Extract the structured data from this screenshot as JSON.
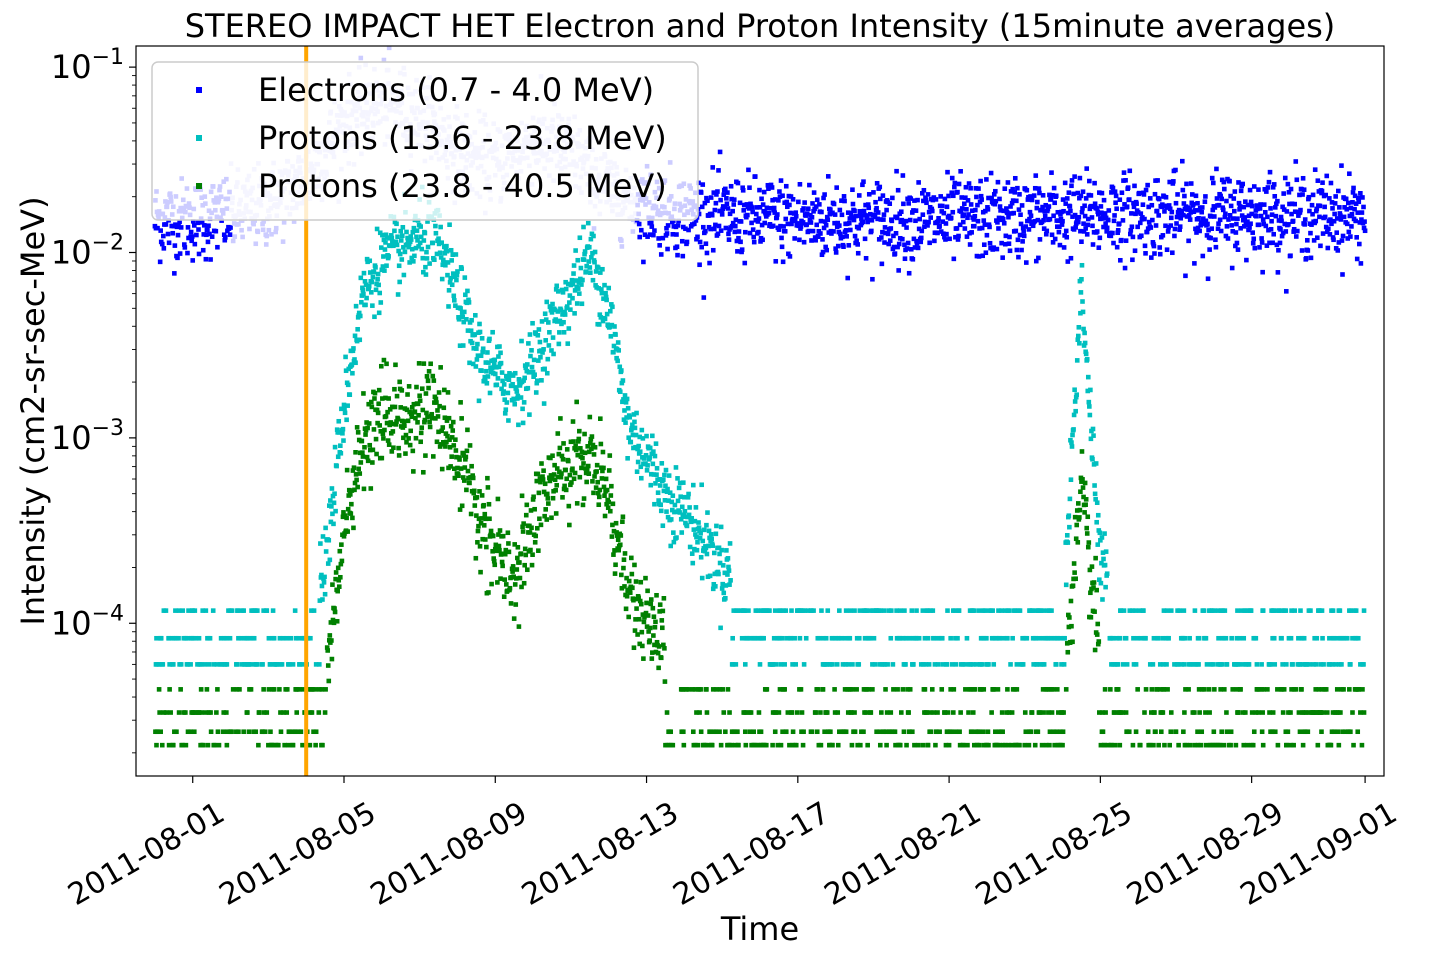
{
  "chart_data": {
    "type": "scatter",
    "title": "STEREO IMPACT HET Electron and Proton Intensity (15minute averages)",
    "xlabel": "Time",
    "ylabel": "Intensity (cm2-sr-sec-MeV)",
    "yscale": "log",
    "ylim": [
      1.5e-05,
      0.13
    ],
    "xlim": [
      "2011-07-30T12:00",
      "2011-09-01T12:00"
    ],
    "x_ticks": [
      "2011-08-01",
      "2011-08-05",
      "2011-08-09",
      "2011-08-13",
      "2011-08-17",
      "2011-08-21",
      "2011-08-25",
      "2011-08-29",
      "2011-09-01"
    ],
    "y_ticks": [
      {
        "value": 0.0001,
        "base": "10",
        "exp": "−4"
      },
      {
        "value": 0.001,
        "base": "10",
        "exp": "−3"
      },
      {
        "value": 0.01,
        "base": "10",
        "exp": "−2"
      },
      {
        "value": 0.1,
        "base": "10",
        "exp": "−1"
      }
    ],
    "vertical_line": {
      "x": "2011-08-04T00:00",
      "color": "#ffa500"
    },
    "legend_position": "upper-left",
    "series": [
      {
        "name": "Electrons (0.7 - 4.0 MeV)",
        "color": "#0000ff",
        "baseline": 0.015,
        "points": [
          [
            "2011-08-01",
            0.015
          ],
          [
            "2011-08-02",
            0.016
          ],
          [
            "2011-08-03",
            0.018
          ],
          [
            "2011-08-04",
            0.025
          ],
          [
            "2011-08-05",
            0.05
          ],
          [
            "2011-08-06",
            0.065
          ],
          [
            "2011-08-07",
            0.055
          ],
          [
            "2011-08-08",
            0.035
          ],
          [
            "2011-08-09",
            0.03
          ],
          [
            "2011-08-10",
            0.04
          ],
          [
            "2011-08-11",
            0.035
          ],
          [
            "2011-08-12",
            0.022
          ],
          [
            "2011-08-13",
            0.018
          ],
          [
            "2011-08-14",
            0.016
          ],
          [
            "2011-08-17",
            0.015
          ],
          [
            "2011-08-21",
            0.015
          ],
          [
            "2011-08-25",
            0.016
          ],
          [
            "2011-08-29",
            0.016
          ],
          [
            "2011-09-01",
            0.016
          ]
        ]
      },
      {
        "name": "Protons (13.6 - 23.8 MeV)",
        "color": "#00bfbf",
        "points": [
          [
            "2011-07-31",
            0.0001
          ],
          [
            "2011-08-03",
            0.0001
          ],
          [
            "2011-08-04T12:00",
            0.0002
          ],
          [
            "2011-08-05",
            0.0015
          ],
          [
            "2011-08-05T12:00",
            0.006
          ],
          [
            "2011-08-06",
            0.009
          ],
          [
            "2011-08-07",
            0.012
          ],
          [
            "2011-08-07T12:00",
            0.011
          ],
          [
            "2011-08-08",
            0.006
          ],
          [
            "2011-08-08T12:00",
            0.003
          ],
          [
            "2011-08-09",
            0.0022
          ],
          [
            "2011-08-09T12:00",
            0.0018
          ],
          [
            "2011-08-10",
            0.0025
          ],
          [
            "2011-08-10T12:00",
            0.004
          ],
          [
            "2011-08-11",
            0.006
          ],
          [
            "2011-08-11T12:00",
            0.01
          ],
          [
            "2011-08-12",
            0.005
          ],
          [
            "2011-08-12T12:00",
            0.0012
          ],
          [
            "2011-08-13",
            0.0008
          ],
          [
            "2011-08-13T12:00",
            0.0005
          ],
          [
            "2011-08-14",
            0.0004
          ],
          [
            "2011-08-15",
            0.0002
          ],
          [
            "2011-08-16",
            0.00015
          ],
          [
            "2011-08-17",
            0.0001
          ],
          [
            "2011-08-20",
            0.0001
          ],
          [
            "2011-08-24",
            0.0001
          ],
          [
            "2011-08-24T12:00",
            0.007
          ],
          [
            "2011-08-25",
            0.0002
          ],
          [
            "2011-08-27",
            0.0001
          ],
          [
            "2011-09-01",
            0.0001
          ]
        ]
      },
      {
        "name": "Protons (23.8 - 40.5 MeV)",
        "color": "#008000",
        "points": [
          [
            "2011-07-31",
            4e-05
          ],
          [
            "2011-08-03",
            4e-05
          ],
          [
            "2011-08-04T12:00",
            6e-05
          ],
          [
            "2011-08-05",
            0.0003
          ],
          [
            "2011-08-05T12:00",
            0.0009
          ],
          [
            "2011-08-06",
            0.0012
          ],
          [
            "2011-08-07",
            0.0015
          ],
          [
            "2011-08-07T12:00",
            0.0013
          ],
          [
            "2011-08-08",
            0.0008
          ],
          [
            "2011-08-08T12:00",
            0.0004
          ],
          [
            "2011-08-09",
            0.00025
          ],
          [
            "2011-08-09T12:00",
            0.00015
          ],
          [
            "2011-08-10",
            0.0004
          ],
          [
            "2011-08-10T12:00",
            0.0006
          ],
          [
            "2011-08-11",
            0.0007
          ],
          [
            "2011-08-11T12:00",
            0.0008
          ],
          [
            "2011-08-12",
            0.0005
          ],
          [
            "2011-08-12T12:00",
            0.00015
          ],
          [
            "2011-08-13",
            0.0001
          ],
          [
            "2011-08-13T12:00",
            7e-05
          ],
          [
            "2011-08-14",
            5e-05
          ],
          [
            "2011-08-17",
            4e-05
          ],
          [
            "2011-08-24",
            4e-05
          ],
          [
            "2011-08-24T12:00",
            0.0005
          ],
          [
            "2011-08-25",
            6e-05
          ],
          [
            "2011-08-27",
            3e-05
          ],
          [
            "2011-09-01",
            3e-05
          ]
        ]
      }
    ]
  }
}
